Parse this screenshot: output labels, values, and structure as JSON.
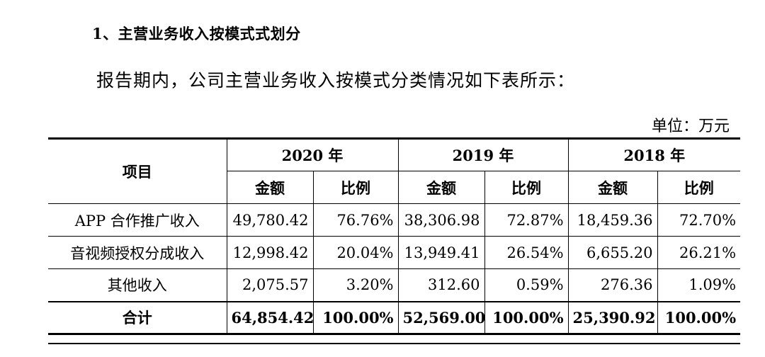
{
  "section_heading": "1、主营业务收入按模式式划分",
  "intro_text": "报告期内，公司主营业务收入按模式分类情况如下表所示：",
  "unit_label": "单位：万元",
  "table": {
    "item_header": "项目",
    "years": [
      "2020 年",
      "2019 年",
      "2018 年"
    ],
    "sub_headers": {
      "amount": "金额",
      "ratio": "比例"
    },
    "rows": [
      {
        "item": "APP 合作推广收入",
        "values": [
          "49,780.42",
          "76.76%",
          "38,306.98",
          "72.87%",
          "18,459.36",
          "72.70%"
        ]
      },
      {
        "item": "音视频授权分成收入",
        "values": [
          "12,998.42",
          "20.04%",
          "13,949.41",
          "26.54%",
          "6,655.20",
          "26.21%"
        ]
      },
      {
        "item": "其他收入",
        "values": [
          "2,075.57",
          "3.20%",
          "312.60",
          "0.59%",
          "276.36",
          "1.09%"
        ]
      }
    ],
    "total": {
      "item": "合计",
      "values": [
        "64,854.42",
        "100.00%",
        "52,569.00",
        "100.00%",
        "25,390.92",
        "100.00%"
      ]
    }
  }
}
